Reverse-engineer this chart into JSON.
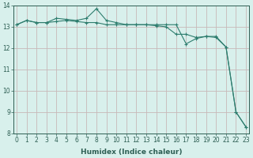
{
  "xlabel": "Humidex (Indice chaleur)",
  "background_color": "#d8f0ec",
  "grid_color": "#c8b8b8",
  "line_color": "#2e7d6e",
  "marker_color": "#2e7d6e",
  "line1_x": [
    0,
    1,
    2,
    3,
    4,
    5,
    6,
    7,
    8,
    9,
    10,
    11,
    12,
    13,
    14,
    15,
    16,
    17,
    18,
    19,
    20,
    21,
    22,
    23
  ],
  "line1_y": [
    13.1,
    13.3,
    13.2,
    13.2,
    13.25,
    13.3,
    13.25,
    13.2,
    13.2,
    13.1,
    13.1,
    13.1,
    13.1,
    13.1,
    13.05,
    13.0,
    12.65,
    12.65,
    12.5,
    12.55,
    12.5,
    12.05,
    9.0,
    8.3
  ],
  "line2_x": [
    0,
    1,
    2,
    3,
    4,
    5,
    6,
    7,
    8,
    9,
    10,
    11,
    12,
    13,
    14,
    15,
    16,
    17,
    18,
    19,
    20,
    21,
    22,
    23
  ],
  "line2_y": [
    13.1,
    13.3,
    13.2,
    13.2,
    13.4,
    13.35,
    13.3,
    13.4,
    13.85,
    13.3,
    13.2,
    13.1,
    13.1,
    13.1,
    13.1,
    13.1,
    13.1,
    12.2,
    12.45,
    12.55,
    12.55,
    12.05,
    9.0,
    8.3
  ],
  "xlim": [
    0,
    23
  ],
  "ylim": [
    8,
    14
  ],
  "yticks": [
    8,
    9,
    10,
    11,
    12,
    13,
    14
  ],
  "xticks": [
    0,
    1,
    2,
    3,
    4,
    5,
    6,
    7,
    8,
    9,
    10,
    11,
    12,
    13,
    14,
    15,
    16,
    17,
    18,
    19,
    20,
    21,
    22,
    23
  ],
  "font_color": "#2e5f54",
  "fontsize_axis": 5.5,
  "fontsize_label": 6.5
}
